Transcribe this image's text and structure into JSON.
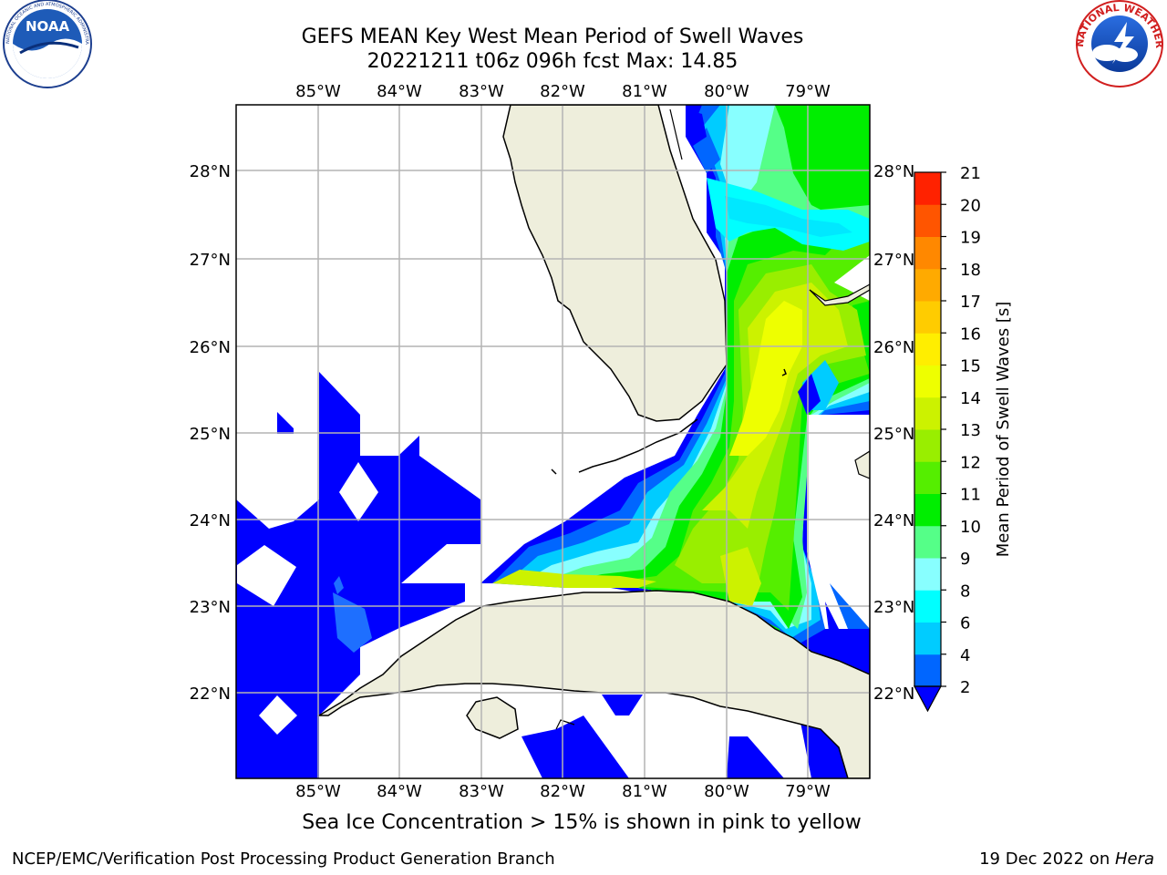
{
  "header": {
    "title_line1": "GEFS MEAN Key West Mean Period of Swell Waves",
    "title_line2": "20221211 t06z 096h fcst   Max: 14.85"
  },
  "logos": {
    "left": {
      "name": "noaa-logo",
      "text": "NOAA",
      "ring_text": "NATIONAL OCEANIC AND ATMOSPHERIC ADMINISTRATION · U.S. DEPARTMENT OF COMMERCE"
    },
    "right": {
      "name": "nws-logo",
      "ring_text": "NATIONAL WEATHER SERVICE"
    }
  },
  "map": {
    "lon_ticks": [
      "85°W",
      "84°W",
      "83°W",
      "82°W",
      "81°W",
      "80°W",
      "79°W"
    ],
    "lat_ticks": [
      "28°N",
      "27°N",
      "26°N",
      "25°N",
      "24°N",
      "23°N",
      "22°N"
    ],
    "lon_range": [
      -86.0,
      -78.25
    ],
    "lat_range": [
      21.1,
      28.8
    ],
    "colors": {
      "land": "#eeeedc",
      "ocean": "#ffffff",
      "grid": "#b4b4b4"
    }
  },
  "colorbar": {
    "label": "Mean Period of Swell Waves [s]",
    "ticks": [
      "2",
      "4",
      "6",
      "8",
      "9",
      "10",
      "11",
      "12",
      "13",
      "14",
      "15",
      "16",
      "17",
      "18",
      "19",
      "20",
      "21"
    ],
    "colors": [
      "#0000ff",
      "#0066ff",
      "#00ccff",
      "#00ffff",
      "#88ffff",
      "#55ff88",
      "#00ee00",
      "#55ee00",
      "#99ee00",
      "#ccf200",
      "#eeff00",
      "#ffee00",
      "#ffcc00",
      "#ffaa00",
      "#ff8800",
      "#ff5500",
      "#ff2200",
      "#ff0000"
    ]
  },
  "caption": "Sea Ice Concentration > 15% is shown in pink to yellow",
  "footer": {
    "left": "NCEP/EMC/Verification Post Processing Product Generation Branch",
    "right_prefix": "19 Dec 2022 on ",
    "right_italic": "Hera"
  }
}
